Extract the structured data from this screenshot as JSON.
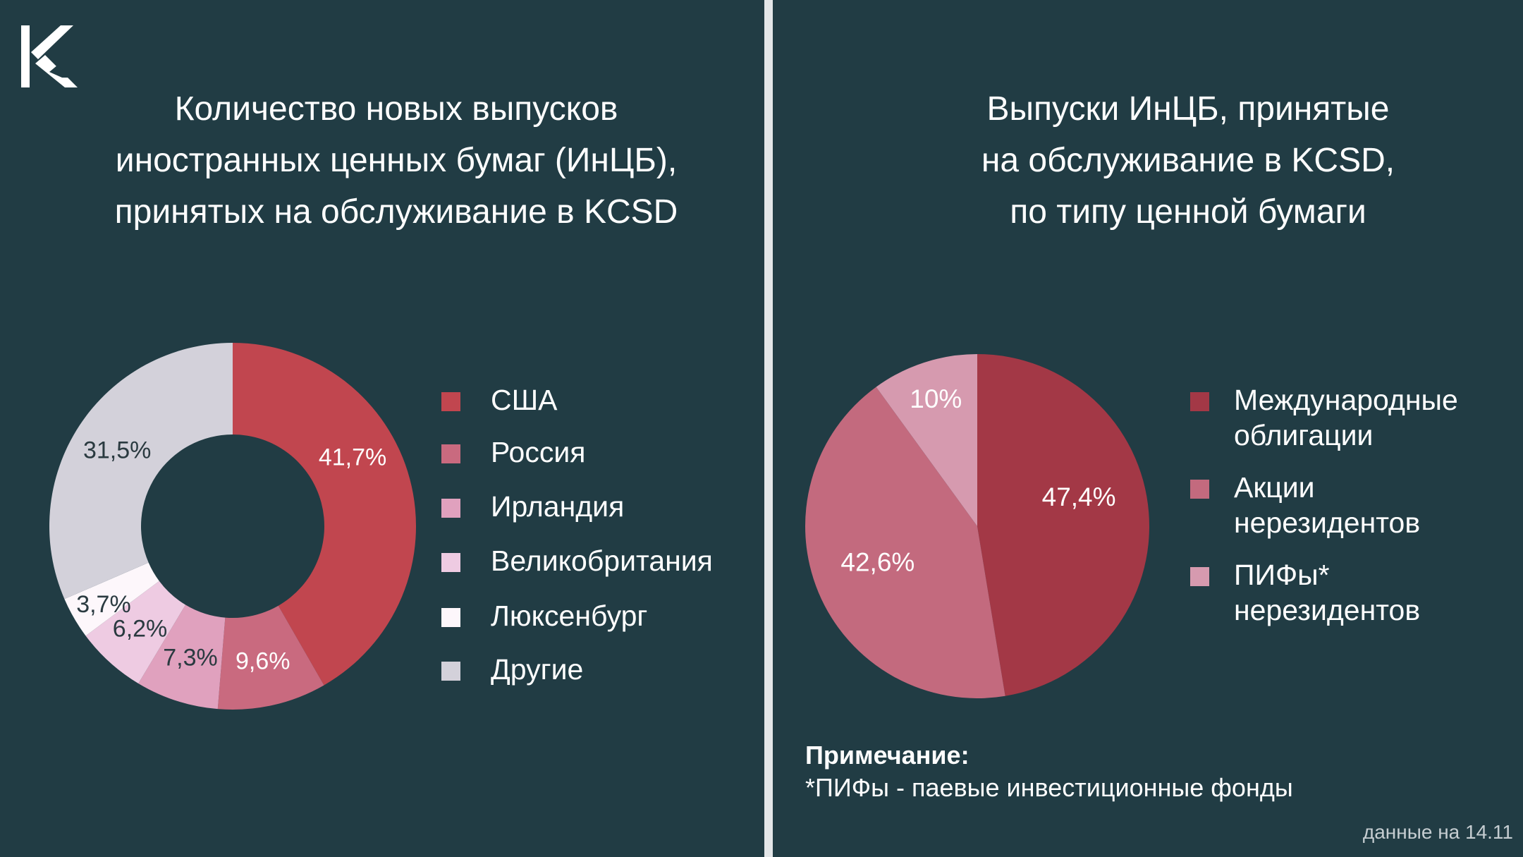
{
  "left_title": [
    "Количество новых выпусков",
    "иностранных ценных бумаг (ИнЦБ),",
    "принятых на обслуживание в KCSD"
  ],
  "right_title": [
    "Выпуски ИнЦБ, принятые",
    "на обслуживание в KCSD,",
    "по типу ценной бумаги"
  ],
  "note": {
    "heading": "Примечание:",
    "text": "*ПИФы - паевые инвестиционные фонды"
  },
  "source": "данные на 14.11",
  "chart_data": [
    {
      "type": "pie",
      "variant": "donut",
      "title": "Количество новых выпусков иностранных ценных бумаг (ИнЦБ), принятых на обслуживание в KCSD",
      "categories": [
        "США",
        "Россия",
        "Ирландия",
        "Великобритания",
        "Люксенбург",
        "Другие"
      ],
      "values": [
        41.7,
        9.6,
        7.3,
        6.2,
        3.7,
        31.5
      ],
      "data_labels": [
        "41,7%",
        "9,6%",
        "7,3%",
        "6,2%",
        "3,7%",
        "31,5%"
      ],
      "colors": [
        "#c1464f",
        "#c96a7f",
        "#e0a1be",
        "#eecbe2",
        "#fdf7fb",
        "#d3d1da"
      ],
      "label_colors": [
        "#ffffff",
        "#ffffff",
        "#2a3a40",
        "#2a3a40",
        "#2a3a40",
        "#2a3a40"
      ],
      "legend_position": "right",
      "start": "12 o'clock, clockwise"
    },
    {
      "type": "pie",
      "title": "Выпуски ИнЦБ, принятые на обслуживание в KCSD, по типу ценной бумаги",
      "categories": [
        "Международные\n облигации",
        "Акции\nнерезидентов",
        "ПИФы*\nнерезидентов"
      ],
      "values": [
        47.4,
        42.6,
        10
      ],
      "data_labels": [
        "47,4%",
        "42,6%",
        "10%"
      ],
      "colors": [
        "#a33846",
        "#c36a7e",
        "#d69aaf"
      ],
      "label_colors": [
        "#ffffff",
        "#ffffff",
        "#ffffff"
      ],
      "legend_position": "right",
      "start": "12 o'clock, clockwise"
    }
  ]
}
